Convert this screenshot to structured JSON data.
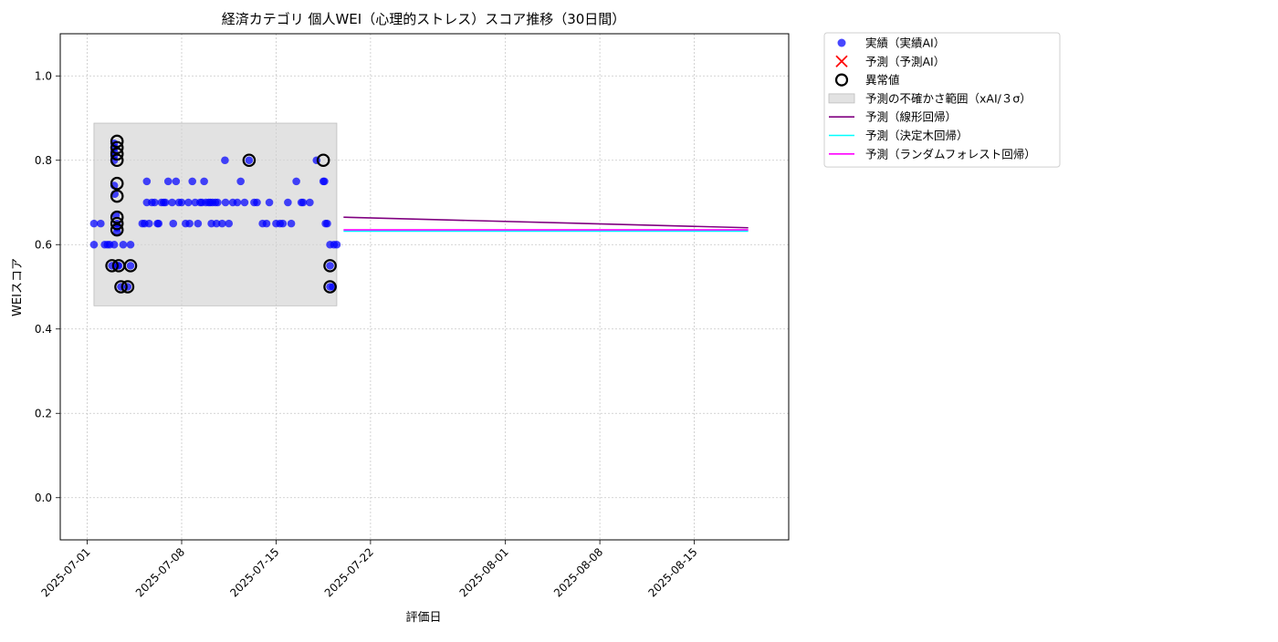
{
  "chart_data": {
    "type": "scatter",
    "title": "経済カテゴリ 個人WEI（心理的ストレス）スコア推移（30日間）",
    "xlabel": "評価日",
    "ylabel": "WEIスコア",
    "ylim": [
      -0.1,
      1.1
    ],
    "xlim": [
      "2025-06-29",
      "2025-08-22"
    ],
    "y_ticks": [
      0.0,
      0.2,
      0.4,
      0.6,
      0.8,
      1.0
    ],
    "y_tick_labels": [
      "0.0",
      "0.2",
      "0.4",
      "0.6",
      "0.8",
      "1.0"
    ],
    "x_ticks": [
      "2025-07-01",
      "2025-07-08",
      "2025-07-15",
      "2025-07-22",
      "2025-08-01",
      "2025-08-08",
      "2025-08-15"
    ],
    "grid": true,
    "legend_position": "outside-top-right",
    "legend": [
      {
        "label": "実績（実績AI）",
        "kind": "scatter",
        "color": "#0000ff"
      },
      {
        "label": "予測（予測AI）",
        "kind": "x",
        "color": "#ff0000"
      },
      {
        "label": "異常値",
        "kind": "ring",
        "color": "#000000"
      },
      {
        "label": "予測の不確かさ範囲（xAI/３σ）",
        "kind": "band",
        "color": "#d3d3d3"
      },
      {
        "label": "予測（線形回帰）",
        "kind": "line",
        "color": "#800080"
      },
      {
        "label": "予測（決定木回帰）",
        "kind": "line",
        "color": "#00ffff"
      },
      {
        "label": "予測（ランダムフォレスト回帰）",
        "kind": "line",
        "color": "#ff00ff"
      }
    ],
    "uncertainty_band": {
      "x_start": "2025-07-01 12:00",
      "x_end": "2025-07-19 12:00",
      "y_low": 0.455,
      "y_high": 0.888
    },
    "actual": {
      "name": "実績（実績AI）",
      "points": [
        [
          "2025-07-01 12:00",
          0.6
        ],
        [
          "2025-07-01 12:00",
          0.65
        ],
        [
          "2025-07-02 00:00",
          0.65
        ],
        [
          "2025-07-02 07:00",
          0.6
        ],
        [
          "2025-07-02 12:00",
          0.6
        ],
        [
          "2025-07-02 16:00",
          0.6
        ],
        [
          "2025-07-02 20:00",
          0.55
        ],
        [
          "2025-07-03 00:00",
          0.6
        ],
        [
          "2025-07-03 05:00",
          0.65
        ],
        [
          "2025-07-03 05:00",
          0.64
        ],
        [
          "2025-07-03 05:00",
          0.63
        ],
        [
          "2025-07-03 06:00",
          0.55
        ],
        [
          "2025-07-03 08:00",
          0.55
        ],
        [
          "2025-07-03 03:00",
          0.67
        ],
        [
          "2025-07-03 01:00",
          0.72
        ],
        [
          "2025-07-03 00:00",
          0.74
        ],
        [
          "2025-07-03 00:00",
          0.8
        ],
        [
          "2025-07-03 00:00",
          0.81
        ],
        [
          "2025-07-03 00:00",
          0.82
        ],
        [
          "2025-07-03 00:00",
          0.83
        ],
        [
          "2025-07-03 00:00",
          0.84
        ],
        [
          "2025-07-03 12:00",
          0.5
        ],
        [
          "2025-07-03 16:00",
          0.6
        ],
        [
          "2025-07-04 00:00",
          0.5
        ],
        [
          "2025-07-04 05:00",
          0.55
        ],
        [
          "2025-07-04 05:00",
          0.6
        ],
        [
          "2025-07-05 02:00",
          0.65
        ],
        [
          "2025-07-05 06:00",
          0.65
        ],
        [
          "2025-07-05 10:00",
          0.75
        ],
        [
          "2025-07-05 10:00",
          0.7
        ],
        [
          "2025-07-05 14:00",
          0.65
        ],
        [
          "2025-07-05 19:00",
          0.7
        ],
        [
          "2025-07-06 00:00",
          0.7
        ],
        [
          "2025-07-06 05:00",
          0.65
        ],
        [
          "2025-07-06 07:00",
          0.65
        ],
        [
          "2025-07-06 12:00",
          0.7
        ],
        [
          "2025-07-06 16:00",
          0.7
        ],
        [
          "2025-07-06 19:00",
          0.7
        ],
        [
          "2025-07-07 00:00",
          0.75
        ],
        [
          "2025-07-07 07:00",
          0.7
        ],
        [
          "2025-07-07 09:00",
          0.65
        ],
        [
          "2025-07-07 14:00",
          0.75
        ],
        [
          "2025-07-07 19:00",
          0.7
        ],
        [
          "2025-07-08 00:00",
          0.7
        ],
        [
          "2025-07-08 07:00",
          0.65
        ],
        [
          "2025-07-08 12:00",
          0.7
        ],
        [
          "2025-07-08 14:00",
          0.65
        ],
        [
          "2025-07-08 19:00",
          0.75
        ],
        [
          "2025-07-09 00:00",
          0.7
        ],
        [
          "2025-07-09 05:00",
          0.65
        ],
        [
          "2025-07-09 09:00",
          0.7
        ],
        [
          "2025-07-09 12:00",
          0.7
        ],
        [
          "2025-07-09 16:00",
          0.75
        ],
        [
          "2025-07-09 19:00",
          0.7
        ],
        [
          "2025-07-10 00:00",
          0.7
        ],
        [
          "2025-07-10 03:00",
          0.7
        ],
        [
          "2025-07-10 05:00",
          0.65
        ],
        [
          "2025-07-10 07:00",
          0.7
        ],
        [
          "2025-07-10 12:00",
          0.7
        ],
        [
          "2025-07-10 14:00",
          0.65
        ],
        [
          "2025-07-10 16:00",
          0.7
        ],
        [
          "2025-07-11 00:00",
          0.65
        ],
        [
          "2025-07-11 05:00",
          0.8
        ],
        [
          "2025-07-11 06:00",
          0.7
        ],
        [
          "2025-07-11 12:00",
          0.65
        ],
        [
          "2025-07-11 19:00",
          0.7
        ],
        [
          "2025-07-12 03:00",
          0.7
        ],
        [
          "2025-07-12 09:00",
          0.75
        ],
        [
          "2025-07-12 16:00",
          0.7
        ],
        [
          "2025-07-13 00:00",
          0.8
        ],
        [
          "2025-07-13 09:00",
          0.7
        ],
        [
          "2025-07-13 14:00",
          0.7
        ],
        [
          "2025-07-14 00:00",
          0.65
        ],
        [
          "2025-07-14 07:00",
          0.65
        ],
        [
          "2025-07-14 12:00",
          0.7
        ],
        [
          "2025-07-15 00:00",
          0.65
        ],
        [
          "2025-07-15 07:00",
          0.65
        ],
        [
          "2025-07-15 12:00",
          0.65
        ],
        [
          "2025-07-15 21:00",
          0.7
        ],
        [
          "2025-07-16 03:00",
          0.65
        ],
        [
          "2025-07-16 12:00",
          0.75
        ],
        [
          "2025-07-16 21:00",
          0.7
        ],
        [
          "2025-07-17 00:00",
          0.7
        ],
        [
          "2025-07-17 12:00",
          0.7
        ],
        [
          "2025-07-18 00:00",
          0.8
        ],
        [
          "2025-07-18 12:00",
          0.75
        ],
        [
          "2025-07-18 14:00",
          0.75
        ],
        [
          "2025-07-18 16:00",
          0.65
        ],
        [
          "2025-07-18 19:00",
          0.65
        ],
        [
          "2025-07-19 00:00",
          0.6
        ],
        [
          "2025-07-19 07:00",
          0.6
        ],
        [
          "2025-07-19 12:00",
          0.6
        ],
        [
          "2025-07-19 00:00",
          0.55
        ],
        [
          "2025-07-19 00:00",
          0.5
        ],
        [
          "2025-07-19 05:00",
          0.5
        ]
      ]
    },
    "anomalies": {
      "name": "異常値",
      "points": [
        [
          "2025-07-02 20:00",
          0.55
        ],
        [
          "2025-07-03 08:00",
          0.55
        ],
        [
          "2025-07-03 12:00",
          0.5
        ],
        [
          "2025-07-04 00:00",
          0.5
        ],
        [
          "2025-07-04 05:00",
          0.55
        ],
        [
          "2025-07-03 05:00",
          0.635
        ],
        [
          "2025-07-03 05:00",
          0.65
        ],
        [
          "2025-07-03 05:00",
          0.665
        ],
        [
          "2025-07-03 05:00",
          0.715
        ],
        [
          "2025-07-03 05:00",
          0.745
        ],
        [
          "2025-07-03 05:00",
          0.8
        ],
        [
          "2025-07-03 05:00",
          0.815
        ],
        [
          "2025-07-03 05:00",
          0.83
        ],
        [
          "2025-07-03 05:00",
          0.845
        ],
        [
          "2025-07-13 00:00",
          0.8
        ],
        [
          "2025-07-18 12:00",
          0.8
        ],
        [
          "2025-07-19 00:00",
          0.55
        ],
        [
          "2025-07-19 00:00",
          0.5
        ]
      ]
    },
    "forecast_lines": [
      {
        "name": "予測（線形回帰）",
        "color": "#800080",
        "x": [
          "2025-07-20",
          "2025-08-19"
        ],
        "y": [
          0.665,
          0.64
        ]
      },
      {
        "name": "予測（決定木回帰）",
        "color": "#00ffff",
        "x": [
          "2025-07-20",
          "2025-08-19"
        ],
        "y": [
          0.632,
          0.632
        ]
      },
      {
        "name": "予測（ランダムフォレスト回帰）",
        "color": "#ff00ff",
        "x": [
          "2025-07-20",
          "2025-08-19"
        ],
        "y": [
          0.635,
          0.635
        ]
      }
    ]
  }
}
